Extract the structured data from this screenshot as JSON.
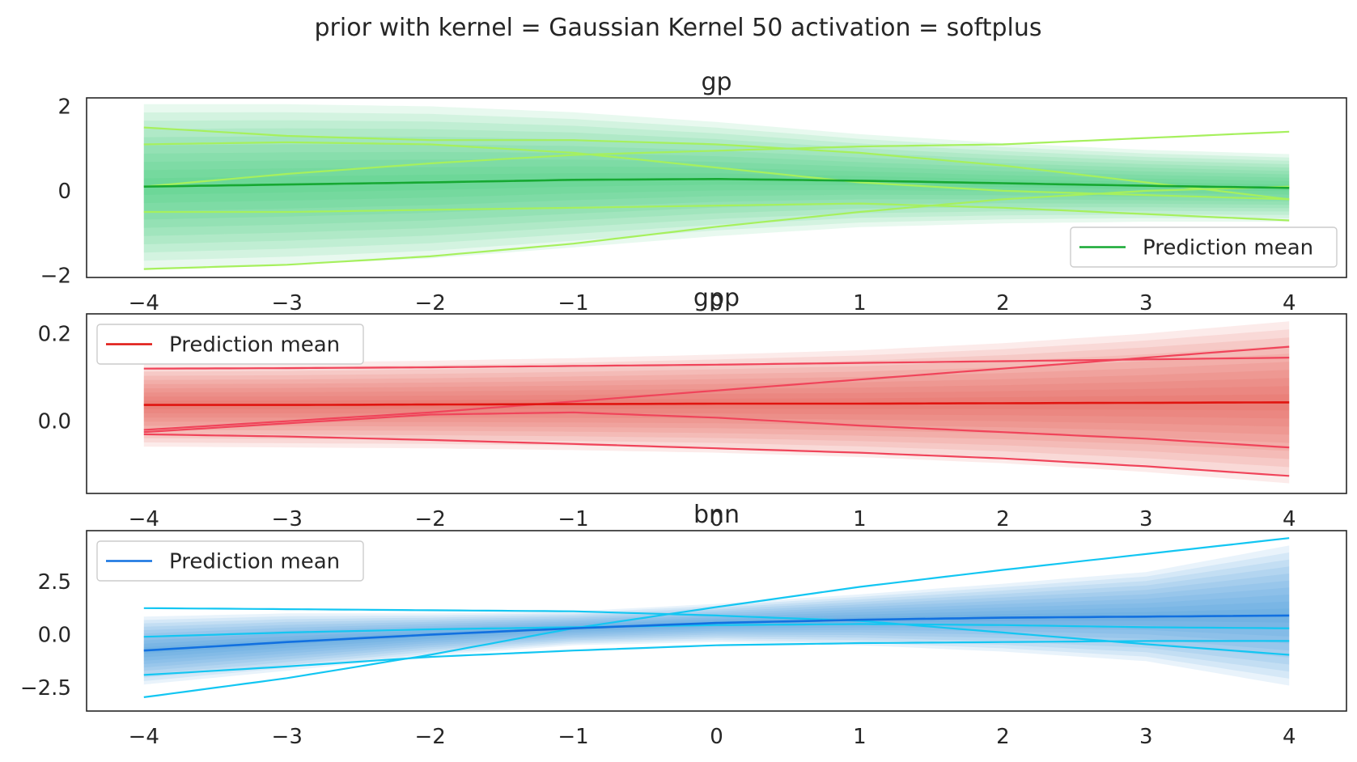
{
  "figure_title": "prior with kernel = Gaussian Kernel 50 activation = softplus",
  "chart_data": [
    {
      "type": "line",
      "title": "gp",
      "xlabel": "",
      "ylabel": "",
      "xlim": [
        -4.4,
        4.4
      ],
      "ylim": [
        -2.05,
        2.2
      ],
      "xticks": [
        -4,
        -3,
        -2,
        -1,
        0,
        1,
        2,
        3,
        4
      ],
      "xtick_labels": [
        "−4",
        "−3",
        "−2",
        "−1",
        "0",
        "1",
        "2",
        "3",
        "4"
      ],
      "yticks": [
        -2,
        0,
        2
      ],
      "ytick_labels": [
        "−2",
        "0",
        "2"
      ],
      "grid": false,
      "legend": {
        "position": "lower-right",
        "entries": [
          "Prediction mean"
        ]
      },
      "colors": {
        "mean": "#16a832",
        "band": "#2ecc71",
        "samples": "#a6f05d"
      },
      "x": [
        -4,
        -3,
        -2,
        -1,
        0,
        1,
        2,
        3,
        4
      ],
      "mean": [
        0.1,
        0.15,
        0.2,
        0.26,
        0.28,
        0.24,
        0.18,
        0.12,
        0.07
      ],
      "band_halfwidth": [
        1.95,
        1.9,
        1.8,
        1.6,
        1.35,
        1.1,
        0.95,
        0.85,
        0.8
      ],
      "samples": [
        [
          1.5,
          1.3,
          1.2,
          1.2,
          1.1,
          0.9,
          0.6,
          0.2,
          -0.2
        ],
        [
          1.1,
          1.15,
          1.1,
          0.9,
          0.55,
          0.2,
          0.0,
          -0.1,
          -0.2
        ],
        [
          0.1,
          0.4,
          0.65,
          0.85,
          0.95,
          1.05,
          1.1,
          1.25,
          1.4
        ],
        [
          -0.5,
          -0.5,
          -0.45,
          -0.4,
          -0.35,
          -0.3,
          -0.4,
          -0.55,
          -0.7
        ],
        [
          -1.85,
          -1.75,
          -1.55,
          -1.25,
          -0.85,
          -0.5,
          -0.2,
          0.0,
          0.1
        ]
      ]
    },
    {
      "type": "line",
      "title": "gpp",
      "xlabel": "",
      "ylabel": "",
      "xlim": [
        -4.4,
        4.4
      ],
      "ylim": [
        -0.165,
        0.245
      ],
      "xticks": [
        -4,
        -3,
        -2,
        -1,
        0,
        1,
        2,
        3,
        4
      ],
      "xtick_labels": [
        "−4",
        "−3",
        "−2",
        "−1",
        "0",
        "1",
        "2",
        "3",
        "4"
      ],
      "yticks": [
        0.0,
        0.2
      ],
      "ytick_labels": [
        "0.0",
        "0.2"
      ],
      "grid": false,
      "legend": {
        "position": "upper-left",
        "entries": [
          "Prediction mean"
        ]
      },
      "colors": {
        "mean": "#e0140f",
        "band": "#e74c3c",
        "samples": "#f0445a"
      },
      "x": [
        -4,
        -3,
        -2,
        -1,
        0,
        1,
        2,
        3,
        4
      ],
      "mean": [
        0.037,
        0.037,
        0.038,
        0.039,
        0.04,
        0.04,
        0.041,
        0.042,
        0.043
      ],
      "band_halfwidth": [
        0.095,
        0.097,
        0.1,
        0.105,
        0.112,
        0.122,
        0.137,
        0.158,
        0.185
      ],
      "samples": [
        [
          0.12,
          0.121,
          0.123,
          0.126,
          0.129,
          0.133,
          0.137,
          0.141,
          0.145
        ],
        [
          -0.02,
          0.0,
          0.02,
          0.045,
          0.07,
          0.095,
          0.12,
          0.145,
          0.17
        ],
        [
          -0.025,
          -0.005,
          0.015,
          0.02,
          0.008,
          -0.01,
          -0.025,
          -0.04,
          -0.06
        ],
        [
          -0.03,
          -0.035,
          -0.043,
          -0.052,
          -0.062,
          -0.072,
          -0.085,
          -0.103,
          -0.125
        ]
      ]
    },
    {
      "type": "line",
      "title": "bnn",
      "xlabel": "",
      "ylabel": "",
      "xlim": [
        -4.4,
        4.4
      ],
      "ylim": [
        -3.6,
        4.9
      ],
      "xticks": [
        -4,
        -3,
        -2,
        -1,
        0,
        1,
        2,
        3,
        4
      ],
      "xtick_labels": [
        "−4",
        "−3",
        "−2",
        "−1",
        "0",
        "1",
        "2",
        "3",
        "4"
      ],
      "yticks": [
        -2.5,
        0.0,
        2.5
      ],
      "ytick_labels": [
        "−2.5",
        "0.0",
        "2.5"
      ],
      "grid": false,
      "legend": {
        "position": "upper-left",
        "entries": [
          "Prediction mean"
        ]
      },
      "colors": {
        "mean": "#1170e0",
        "band": "#3a8fdc",
        "samples": "#13c6f2"
      },
      "x": [
        -4,
        -3,
        -2,
        -1,
        0,
        1,
        2,
        3,
        4
      ],
      "mean": [
        -0.75,
        -0.35,
        0.0,
        0.3,
        0.55,
        0.7,
        0.8,
        0.85,
        0.9
      ],
      "band_halfwidth": [
        1.6,
        1.35,
        1.0,
        0.8,
        0.9,
        1.2,
        1.6,
        2.1,
        3.3
      ],
      "samples": [
        [
          1.25,
          1.2,
          1.15,
          1.1,
          0.9,
          0.65,
          0.1,
          -0.45,
          -0.95
        ],
        [
          -0.1,
          0.1,
          0.25,
          0.35,
          0.45,
          0.5,
          0.45,
          0.35,
          0.3
        ],
        [
          -1.9,
          -1.5,
          -1.05,
          -0.75,
          -0.5,
          -0.4,
          -0.35,
          -0.3,
          -0.3
        ],
        [
          -2.95,
          -2.05,
          -0.95,
          0.3,
          1.3,
          2.25,
          3.05,
          3.8,
          4.55
        ]
      ]
    }
  ]
}
